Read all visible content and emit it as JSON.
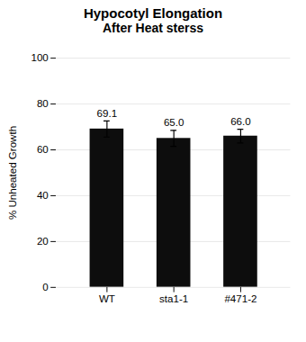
{
  "chart_data": {
    "type": "bar",
    "title": "Hypocotyl Elongation",
    "subtitle": "After Heat sterss",
    "categories": [
      "WT",
      "sta1-1",
      "#471-2"
    ],
    "values": [
      69.1,
      65.0,
      66.0
    ],
    "errors": [
      3.5,
      3.5,
      3.0
    ],
    "value_labels": [
      "69.1",
      "65.0",
      "66.0"
    ],
    "data_labels": true,
    "color": "#0d0d0d",
    "ylabel": "% Unheated Growth",
    "ylim": [
      0,
      100
    ],
    "yticks": [
      0,
      20,
      40,
      60,
      80,
      100
    ],
    "grid": true
  }
}
